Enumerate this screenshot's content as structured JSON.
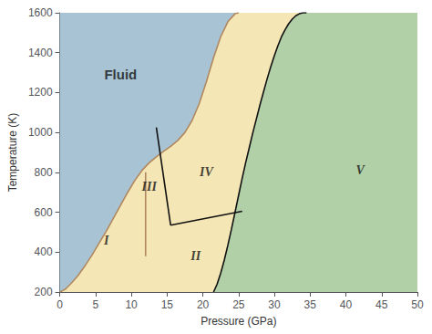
{
  "chart_data": {
    "type": "line",
    "xlabel": "Pressure (GPa)",
    "ylabel": "Temperature (K)",
    "xlim": [
      0,
      50
    ],
    "ylim": [
      200,
      1600
    ],
    "xticks": [
      0,
      5,
      10,
      15,
      20,
      25,
      30,
      35,
      40,
      45,
      50
    ],
    "yticks": [
      200,
      400,
      600,
      800,
      1000,
      1200,
      1400,
      1600
    ],
    "grid": false,
    "series": [
      {
        "type": "area",
        "color": "#a8c4d4",
        "x": [
          0,
          50,
          50,
          0
        ],
        "values": [
          200,
          200,
          1600,
          1600
        ]
      },
      {
        "type": "area",
        "color": "#b2d0a8",
        "x": [
          21.5,
          22.0,
          22.5,
          23.0,
          23.5,
          24.0,
          24.5,
          25.0,
          25.5,
          26.0,
          26.5,
          27.0,
          27.5,
          28.0,
          28.5,
          29.0,
          29.5,
          30.0,
          30.5,
          31.0,
          31.5,
          32.0,
          32.5,
          33.0,
          33.5,
          34.0,
          34.5,
          50,
          50,
          21.5
        ],
        "values": [
          200,
          240,
          295,
          360,
          435,
          515,
          600,
          685,
          770,
          850,
          925,
          1000,
          1070,
          1140,
          1205,
          1270,
          1330,
          1385,
          1435,
          1480,
          1515,
          1545,
          1568,
          1585,
          1595,
          1600,
          1600,
          1600,
          200,
          200
        ]
      },
      {
        "type": "area",
        "color": "#f5e6b5",
        "x": [
          0.0,
          0.3,
          0.8,
          1.5,
          2.5,
          3.5,
          4.5,
          5.5,
          6.5,
          7.5,
          8.5,
          9.5,
          10.5,
          11.5,
          12.5,
          13.5,
          14.5,
          15.5,
          16.5,
          17.5,
          18.5,
          19.5,
          20.5,
          21.5,
          22.5,
          23.5,
          24.5,
          25.0,
          34.5,
          34.5,
          34.0,
          33.5,
          33.0,
          32.5,
          32.0,
          31.5,
          31.0,
          30.5,
          30.0,
          29.5,
          29.0,
          28.5,
          28.0,
          27.5,
          27.0,
          26.5,
          26.0,
          25.5,
          25.0,
          24.5,
          24.0,
          23.5,
          23.0,
          22.5,
          22.0,
          21.5,
          0.0
        ],
        "values": [
          200,
          205,
          215,
          240,
          280,
          330,
          385,
          445,
          505,
          570,
          635,
          700,
          760,
          810,
          848,
          878,
          905,
          930,
          960,
          1000,
          1060,
          1145,
          1255,
          1375,
          1480,
          1555,
          1595,
          1600,
          1600,
          1600,
          1600,
          1595,
          1585,
          1568,
          1545,
          1515,
          1480,
          1435,
          1385,
          1330,
          1270,
          1205,
          1140,
          1070,
          1000,
          925,
          850,
          770,
          685,
          600,
          515,
          435,
          360,
          295,
          240,
          200,
          200
        ]
      },
      {
        "type": "line",
        "color": "#b08860",
        "x": [
          0.0,
          0.3,
          0.8,
          1.5,
          2.5,
          3.5,
          4.5,
          5.5,
          6.5,
          7.5,
          8.5,
          9.5,
          10.5,
          11.5,
          12.5,
          13.5,
          14.5,
          15.5,
          16.5,
          17.5,
          18.5,
          19.5,
          20.5,
          21.5,
          22.5,
          23.5,
          24.5,
          25.0
        ],
        "values": [
          200,
          205,
          215,
          240,
          280,
          330,
          385,
          445,
          505,
          570,
          635,
          700,
          760,
          810,
          848,
          878,
          905,
          930,
          960,
          1000,
          1060,
          1145,
          1255,
          1375,
          1480,
          1555,
          1595,
          1600
        ]
      },
      {
        "type": "line",
        "color": "#111111",
        "x": [
          21.5,
          22.0,
          22.5,
          23.0,
          23.5,
          24.0,
          24.5,
          25.0,
          25.5,
          26.0,
          26.5,
          27.0,
          27.5,
          28.0,
          28.5,
          29.0,
          29.5,
          30.0,
          30.5,
          31.0,
          31.5,
          32.0,
          32.5,
          33.0,
          33.5,
          34.0,
          34.5
        ],
        "values": [
          200,
          240,
          295,
          360,
          435,
          515,
          600,
          685,
          770,
          850,
          925,
          1000,
          1070,
          1140,
          1205,
          1270,
          1330,
          1385,
          1435,
          1480,
          1515,
          1545,
          1568,
          1585,
          1595,
          1600,
          1600
        ]
      },
      {
        "type": "line",
        "color": "#b08860",
        "x": [
          12.0,
          12.0
        ],
        "values": [
          380,
          800
        ]
      },
      {
        "type": "line",
        "color": "#111111",
        "x": [
          13.5,
          15.5
        ],
        "values": [
          1025,
          535
        ]
      },
      {
        "type": "line",
        "color": "#111111",
        "x": [
          15.5,
          25.5
        ],
        "values": [
          535,
          605
        ]
      }
    ],
    "annotations": [
      {
        "text": "Fluid",
        "x": 8.5,
        "y": 1290
      },
      {
        "text": "I",
        "x": 6.5,
        "y": 460
      },
      {
        "text": "II",
        "x": 19.0,
        "y": 380
      },
      {
        "text": "III",
        "x": 12.5,
        "y": 730
      },
      {
        "text": "IV",
        "x": 20.5,
        "y": 800
      },
      {
        "text": "V",
        "x": 42.0,
        "y": 810
      }
    ]
  }
}
